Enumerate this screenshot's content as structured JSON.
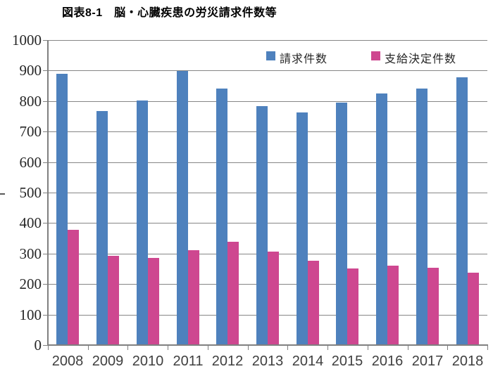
{
  "page": {
    "title": "図表8-1　脳・心臓疾患の労災請求件数等"
  },
  "chart_data": {
    "type": "bar",
    "title": "図表8-1　脳・心臓疾患の労災請求件数等",
    "categories": [
      "2008",
      "2009",
      "2010",
      "2011",
      "2012",
      "2013",
      "2014",
      "2015",
      "2016",
      "2017",
      "2018"
    ],
    "series": [
      {
        "name": "請求件数",
        "color": "#4E81BD",
        "values": [
          889,
          767,
          802,
          898,
          842,
          784,
          763,
          795,
          825,
          840,
          877
        ]
      },
      {
        "name": "支給決定件数",
        "color": "#CE4790",
        "values": [
          377,
          293,
          285,
          310,
          338,
          306,
          277,
          251,
          260,
          253,
          238
        ]
      }
    ],
    "ylim": [
      0,
      1000
    ],
    "yticks": [
      0,
      100,
      200,
      300,
      400,
      500,
      600,
      700,
      800,
      900,
      1000
    ],
    "grid": true,
    "legend_position": "top-inside",
    "colors": {
      "gridline": "#868686",
      "axis": "#808080",
      "x_tick_label": "#3f3f3f",
      "y_tick_label": "#262626"
    }
  }
}
